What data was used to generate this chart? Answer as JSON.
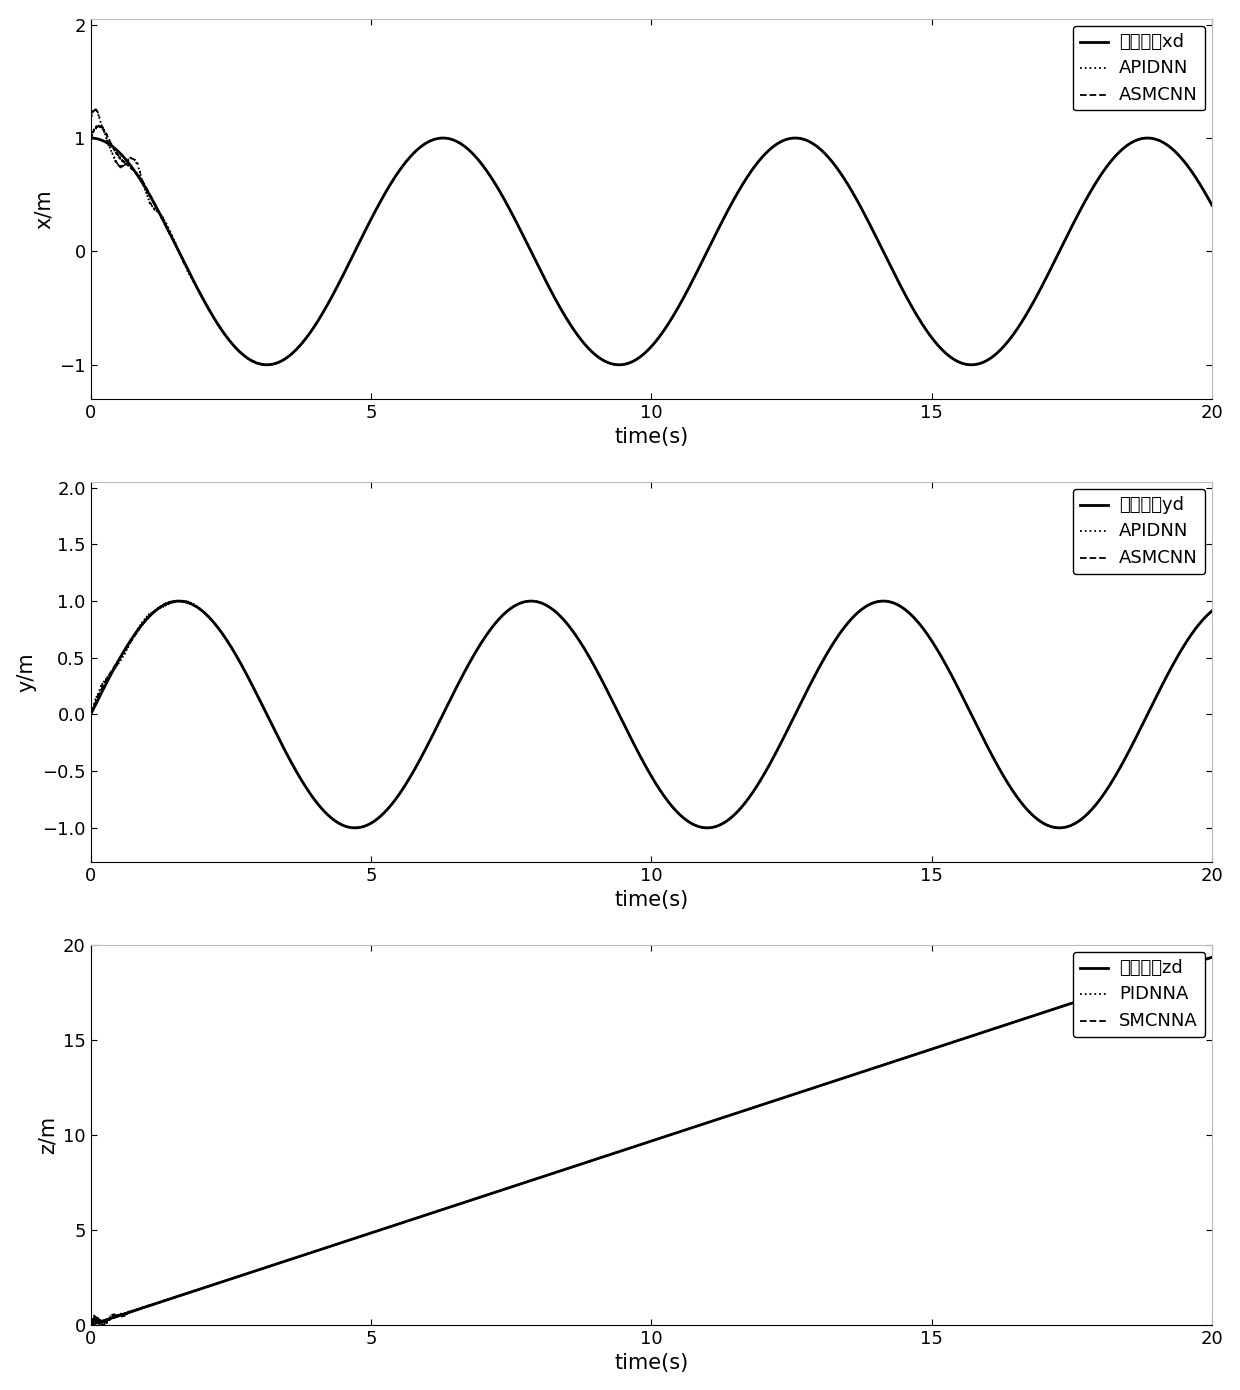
{
  "subplot1": {
    "ylabel": "x/m",
    "xlabel": "time(s)",
    "xlim": [
      0,
      20
    ],
    "ylim_bottom": -1.3,
    "ylim_top": 2.05,
    "yticks": [
      -1,
      0,
      1,
      2
    ],
    "xticks": [
      0,
      5,
      10,
      15,
      20
    ],
    "legend": [
      "期望轨迹xd",
      "APIDNN",
      "ASMCNN"
    ]
  },
  "subplot2": {
    "ylabel": "y/m",
    "xlabel": "time(s)",
    "xlim": [
      0,
      20
    ],
    "ylim_bottom": -1.3,
    "ylim_top": 2.05,
    "yticks": [
      -1,
      -0.5,
      0,
      0.5,
      1,
      1.5,
      2
    ],
    "xticks": [
      0,
      5,
      10,
      15,
      20
    ],
    "legend": [
      "期望轨迹yd",
      "APIDNN",
      "ASMCNN"
    ]
  },
  "subplot3": {
    "ylabel": "z/m",
    "xlabel": "time(s)",
    "xlim": [
      0,
      20
    ],
    "ylim_bottom": 0,
    "ylim_top": 20,
    "yticks": [
      0,
      5,
      10,
      15,
      20
    ],
    "xticks": [
      0,
      5,
      10,
      15,
      20
    ],
    "legend": [
      "期望轨迹zd",
      "PIDNNA",
      "SMCNNA"
    ],
    "slope": 0.968
  },
  "bg_color": "#ffffff",
  "fontsize_label": 15,
  "fontsize_tick": 13,
  "fontsize_legend": 13,
  "lw_ref": 2.0,
  "lw_ctrl": 1.3
}
